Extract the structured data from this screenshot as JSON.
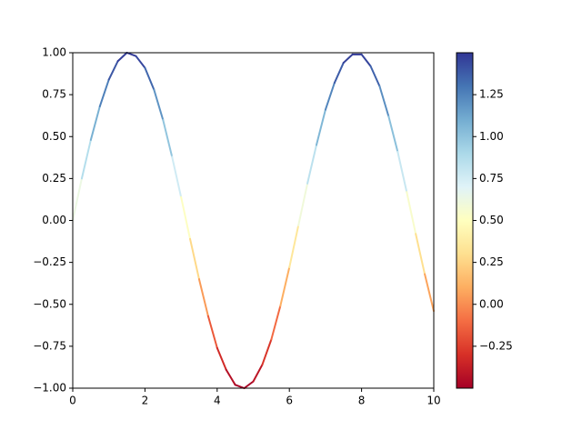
{
  "chart_data": {
    "type": "colored-line",
    "x": [
      0,
      0.25,
      0.5,
      0.75,
      1,
      1.25,
      1.5,
      1.75,
      2,
      2.25,
      2.5,
      2.75,
      3,
      3.25,
      3.5,
      3.75,
      4,
      4.25,
      4.5,
      4.75,
      5,
      5.25,
      5.5,
      5.75,
      6,
      6.25,
      6.5,
      6.75,
      7,
      7.25,
      7.5,
      7.75,
      8,
      8.25,
      8.5,
      8.75,
      9,
      9.25,
      9.5,
      9.75,
      10
    ],
    "values": [
      0,
      0.25,
      0.48,
      0.68,
      0.84,
      0.95,
      1.0,
      0.98,
      0.91,
      0.78,
      0.6,
      0.38,
      0.14,
      -0.11,
      -0.35,
      -0.57,
      -0.76,
      -0.89,
      -0.98,
      -1.0,
      -0.96,
      -0.86,
      -0.71,
      -0.51,
      -0.28,
      -0.03,
      0.22,
      0.45,
      0.66,
      0.82,
      0.94,
      0.99,
      0.99,
      0.92,
      0.8,
      0.62,
      0.41,
      0.17,
      -0.08,
      -0.32,
      -0.54
    ],
    "xlim": [
      0,
      10
    ],
    "xticks": [
      0,
      2,
      4,
      6,
      8,
      10
    ],
    "ylim": [
      -1,
      1
    ],
    "yticks": [
      {
        "value": -1,
        "label": "−1.00"
      },
      {
        "value": -0.75,
        "label": "−0.75"
      },
      {
        "value": -0.5,
        "label": "−0.50"
      },
      {
        "value": -0.25,
        "label": "−0.25"
      },
      {
        "value": 0,
        "label": "0.00"
      },
      {
        "value": 0.25,
        "label": "0.25"
      },
      {
        "value": 0.5,
        "label": "0.50"
      },
      {
        "value": 0.75,
        "label": "0.75"
      },
      {
        "value": 1,
        "label": "1.00"
      }
    ],
    "colormap": [
      "#a50026",
      "#d73027",
      "#f46d43",
      "#fdae61",
      "#fee090",
      "#ffffbf",
      "#e0f3f8",
      "#abd9e9",
      "#74add1",
      "#4575b4",
      "#313695"
    ],
    "colorbar": {
      "lim": [
        -0.5,
        1.5
      ],
      "ticks": [
        {
          "value": -0.25,
          "label": "−0.25"
        },
        {
          "value": 0,
          "label": "0.00"
        },
        {
          "value": 0.25,
          "label": "0.25"
        },
        {
          "value": 0.5,
          "label": "0.50"
        },
        {
          "value": 0.75,
          "label": "0.75"
        },
        {
          "value": 1,
          "label": "1.00"
        },
        {
          "value": 1.25,
          "label": "1.25"
        }
      ]
    }
  }
}
